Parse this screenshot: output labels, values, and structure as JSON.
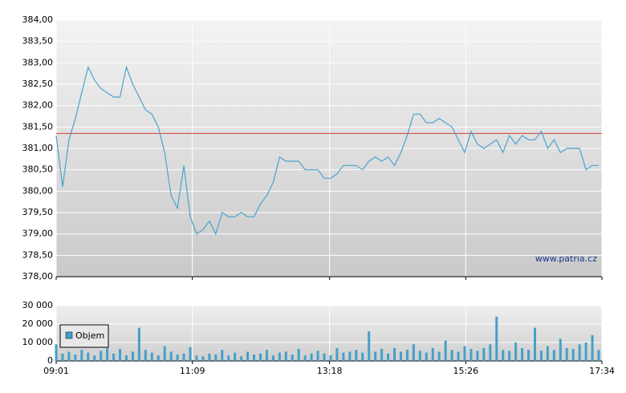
{
  "chart_data": [
    {
      "type": "line",
      "x": [
        541,
        547,
        553,
        559,
        565,
        571,
        577,
        583,
        589,
        595,
        601,
        607,
        613,
        619,
        625,
        631,
        637,
        643,
        649,
        655,
        661,
        667,
        673,
        679,
        685,
        691,
        697,
        703,
        709,
        715,
        721,
        727,
        733,
        739,
        745,
        751,
        757,
        763,
        769,
        775,
        781,
        787,
        793,
        799,
        805,
        811,
        817,
        823,
        829,
        835,
        841,
        847,
        853,
        859,
        865,
        871,
        877,
        883,
        889,
        895,
        901,
        907,
        913,
        919,
        925,
        931,
        937,
        943,
        949,
        955,
        961,
        967,
        973,
        979,
        985,
        991,
        997,
        1003,
        1009,
        1015,
        1021,
        1027,
        1033,
        1039,
        1045,
        1051
      ],
      "values": [
        381.3,
        380.1,
        381.2,
        381.7,
        382.3,
        382.9,
        382.6,
        382.4,
        382.3,
        382.2,
        382.2,
        382.9,
        382.5,
        382.2,
        381.9,
        381.8,
        381.5,
        380.9,
        379.9,
        379.6,
        380.6,
        379.4,
        379.0,
        379.1,
        379.3,
        379.0,
        379.5,
        379.4,
        379.4,
        379.5,
        379.4,
        379.4,
        379.7,
        379.9,
        380.2,
        380.8,
        380.7,
        380.7,
        380.7,
        380.5,
        380.5,
        380.5,
        380.3,
        380.3,
        380.4,
        380.6,
        380.6,
        380.6,
        380.5,
        380.7,
        380.8,
        380.7,
        380.8,
        380.6,
        380.9,
        381.3,
        381.8,
        381.8,
        381.6,
        381.6,
        381.7,
        381.6,
        381.5,
        381.2,
        380.9,
        381.4,
        381.1,
        381.0,
        381.1,
        381.2,
        380.9,
        381.3,
        381.1,
        381.3,
        381.2,
        381.2,
        381.4,
        381.0,
        381.2,
        380.9,
        381.0,
        381.0,
        381.0,
        380.5,
        380.6,
        380.6
      ],
      "color": "#4aa3cf",
      "reference_line": 381.35,
      "reference_color": "#d23b3b",
      "annotation": "www.patria.cz",
      "xlim": [
        541,
        1054
      ],
      "ylim": [
        378,
        384
      ],
      "yticks": [
        {
          "value": 378,
          "label": "378,00"
        },
        {
          "value": 378.5,
          "label": "378,50"
        },
        {
          "value": 379,
          "label": "379,00"
        },
        {
          "value": 379.5,
          "label": "379,50"
        },
        {
          "value": 380,
          "label": "380,00"
        },
        {
          "value": 380.5,
          "label": "380,50"
        },
        {
          "value": 381,
          "label": "381,00"
        },
        {
          "value": 381.5,
          "label": "381,50"
        },
        {
          "value": 382,
          "label": "382,00"
        },
        {
          "value": 382.5,
          "label": "382,50"
        },
        {
          "value": 383,
          "label": "383,00"
        },
        {
          "value": 383.5,
          "label": "383,50"
        },
        {
          "value": 384,
          "label": "384,00"
        }
      ],
      "grid": true
    },
    {
      "type": "bar",
      "x": [
        541,
        547,
        553,
        559,
        565,
        571,
        577,
        583,
        589,
        595,
        601,
        607,
        613,
        619,
        625,
        631,
        637,
        643,
        649,
        655,
        661,
        667,
        673,
        679,
        685,
        691,
        697,
        703,
        709,
        715,
        721,
        727,
        733,
        739,
        745,
        751,
        757,
        763,
        769,
        775,
        781,
        787,
        793,
        799,
        805,
        811,
        817,
        823,
        829,
        835,
        841,
        847,
        853,
        859,
        865,
        871,
        877,
        883,
        889,
        895,
        901,
        907,
        913,
        919,
        925,
        931,
        937,
        943,
        949,
        955,
        961,
        967,
        973,
        979,
        985,
        991,
        997,
        1003,
        1009,
        1015,
        1021,
        1027,
        1033,
        1039,
        1045,
        1051
      ],
      "series": [
        {
          "name": "Objem",
          "color": "#45a0c8",
          "values": [
            9000,
            4000,
            5000,
            3500,
            6000,
            4500,
            3000,
            5500,
            7000,
            4000,
            6500,
            3000,
            5000,
            18000,
            6000,
            4500,
            3000,
            8000,
            5000,
            3500,
            4000,
            7500,
            3000,
            2500,
            4000,
            3500,
            6000,
            3000,
            4500,
            2500,
            5000,
            3500,
            4000,
            6000,
            3000,
            4500,
            5000,
            3500,
            6500,
            3000,
            4000,
            5500,
            4000,
            3000,
            7000,
            4500,
            5000,
            6000,
            4500,
            16000,
            5000,
            6500,
            4000,
            7000,
            5000,
            6000,
            9000,
            5500,
            4500,
            7000,
            5000,
            11000,
            6000,
            5000,
            8000,
            6500,
            5500,
            7000,
            9000,
            24000,
            6000,
            5500,
            10000,
            7000,
            6000,
            18000,
            5500,
            8000,
            6000,
            12000,
            7000,
            6500,
            9000,
            10000,
            14000,
            6000
          ]
        }
      ],
      "xlim": [
        541,
        1054
      ],
      "ylim": [
        0,
        30000
      ],
      "yticks": [
        0,
        {
          "value": 10000,
          "label": "10 000"
        },
        {
          "value": 20000,
          "label": "20 000"
        },
        {
          "value": 30000,
          "label": "30 000"
        }
      ],
      "xticks": [
        {
          "value": 541,
          "label": "09:01"
        },
        {
          "value": 669,
          "label": "11:09"
        },
        {
          "value": 798,
          "label": "13:18"
        },
        {
          "value": 926,
          "label": "15:26"
        },
        {
          "value": 1054,
          "label": "17:34"
        }
      ],
      "legend": "upper-left",
      "grid": true
    }
  ]
}
